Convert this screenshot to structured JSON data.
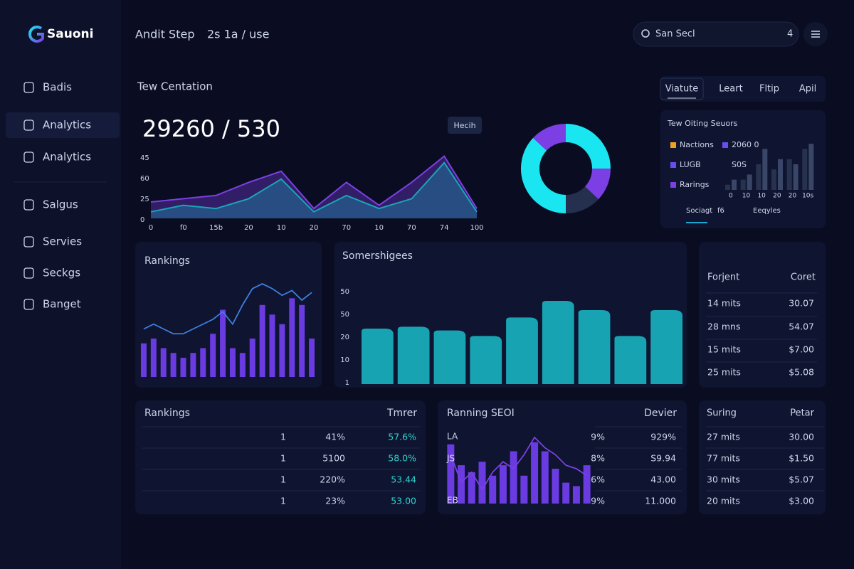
{
  "brand": "Sauoni",
  "header": {
    "title": "Andit Step",
    "subtitle": "2s 1a / use",
    "search": "San Secl",
    "search_hint": "4"
  },
  "sidebar": {
    "items": [
      "Badis",
      "Analytics",
      "Analytics",
      "Salgus",
      "Servies",
      "Seckgs",
      "Banget"
    ],
    "active": 1
  },
  "overview": {
    "title": "Tew Centation",
    "headline": "29260 / 530",
    "badge": "Hecih",
    "chart_data": {
      "type": "area",
      "y_labels": [
        "45",
        "60",
        "25",
        "0"
      ],
      "categories": [
        "0",
        "f0",
        "15b",
        "20",
        "10",
        "20",
        "70",
        "10",
        "70",
        "74",
        "100"
      ],
      "ylim": [
        0,
        100
      ],
      "series": [
        {
          "color": "#7b3fe4",
          "values": [
            25,
            30,
            35,
            55,
            72,
            15,
            55,
            20,
            55,
            95,
            15
          ]
        },
        {
          "color": "#1aa5b8",
          "values": [
            10,
            20,
            15,
            30,
            60,
            10,
            35,
            15,
            30,
            85,
            10
          ]
        }
      ]
    }
  },
  "tabs": {
    "items": [
      "Viatute",
      "Leart",
      "Fltip",
      "Apil"
    ],
    "active": 0
  },
  "donut": {
    "chart_data": {
      "type": "donut",
      "values": [
        25,
        12,
        13,
        37,
        13
      ],
      "colors": [
        "#19e6f0",
        "#7b3fe4",
        "#25304e",
        "#19e6f0",
        "#7b3fe4"
      ]
    }
  },
  "sources": {
    "title": "Tew Oiting Seuors",
    "legend": [
      {
        "label": "Nactions",
        "color": "#f0a020",
        "value": "2060 0"
      },
      {
        "label": "LUGB",
        "color": "#6a4cf0",
        "value": "S0S"
      },
      {
        "label": "Rarings",
        "color": "#7b3fe4"
      }
    ],
    "chart_data": {
      "type": "bar",
      "categories": [
        "0",
        "10",
        "10",
        "20",
        "20",
        "10s"
      ],
      "ylim": [
        0,
        10
      ],
      "series": [
        {
          "color": "#27324f",
          "values": [
            1,
            2,
            5,
            4,
            6,
            8
          ]
        },
        {
          "color": "#3a4668",
          "values": [
            2,
            3,
            8,
            6,
            5,
            9
          ]
        }
      ]
    },
    "footer": [
      "Sociagt",
      "f6",
      "Eeqyles"
    ]
  },
  "rankings": {
    "title": "Rankings",
    "chart_data": {
      "type": "bar-line",
      "ylim": [
        0,
        100
      ],
      "series": [
        {
          "color": "#6a3be0",
          "values": [
            35,
            40,
            30,
            25,
            20,
            25,
            30,
            45,
            70,
            30,
            25,
            40,
            75,
            65,
            55,
            82,
            75,
            40
          ]
        },
        {
          "color": "#3f7fe0",
          "values": [
            50,
            55,
            50,
            45,
            45,
            50,
            55,
            60,
            68,
            55,
            75,
            92,
            97,
            92,
            85,
            90,
            80,
            88
          ]
        }
      ]
    }
  },
  "somers": {
    "title": "Somershigees",
    "chart_data": {
      "type": "bar",
      "y_labels": [
        "50",
        "50",
        "20",
        "10",
        "1"
      ],
      "ylim": [
        0,
        100
      ],
      "color": "#18a3b3",
      "values": [
        60,
        62,
        58,
        52,
        72,
        90,
        80,
        52,
        80
      ]
    }
  },
  "right_table": {
    "headers": [
      "Forjent",
      "Coret"
    ],
    "rows": [
      [
        "14 mits",
        "30.07"
      ],
      [
        "28 mns",
        "54.07"
      ],
      [
        "15 mits",
        "$7.00"
      ],
      [
        "25 mits",
        "$5.08"
      ]
    ]
  },
  "bottom_left": {
    "title": "Rankings",
    "header": "Tmrer",
    "rows": [
      [
        "1",
        "41%",
        "57.6%"
      ],
      [
        "1",
        "5100",
        "58.0%"
      ],
      [
        "1",
        "220%",
        "53.44"
      ],
      [
        "1",
        "23%",
        "53.00"
      ]
    ]
  },
  "bottom_mid": {
    "title": "Ranning SEOI",
    "header": "Devier",
    "labels": [
      "LA",
      "JS",
      "EB"
    ],
    "rows": [
      [
        "9%",
        "929%"
      ],
      [
        "8%",
        "S9.94"
      ],
      [
        "6%",
        "43.00"
      ],
      [
        "9%",
        "11.000"
      ]
    ],
    "chart_data": {
      "type": "bar-line",
      "ylim": [
        0,
        100
      ],
      "series": [
        {
          "color": "#6a3be0",
          "values": [
            85,
            55,
            45,
            60,
            40,
            55,
            75,
            40,
            88,
            75,
            50,
            30,
            25,
            55
          ]
        },
        {
          "color": "#7b3fe4",
          "values": [
            70,
            30,
            45,
            20,
            45,
            60,
            50,
            70,
            95,
            80,
            70,
            55,
            50,
            40
          ]
        }
      ]
    }
  },
  "bottom_right": {
    "headers": [
      "Suring",
      "Petar"
    ],
    "rows": [
      [
        "27 mits",
        "30.00"
      ],
      [
        "77 mits",
        "$1.50"
      ],
      [
        "30 mits",
        "$5.07"
      ],
      [
        "20 mits",
        "$3.00"
      ]
    ]
  }
}
